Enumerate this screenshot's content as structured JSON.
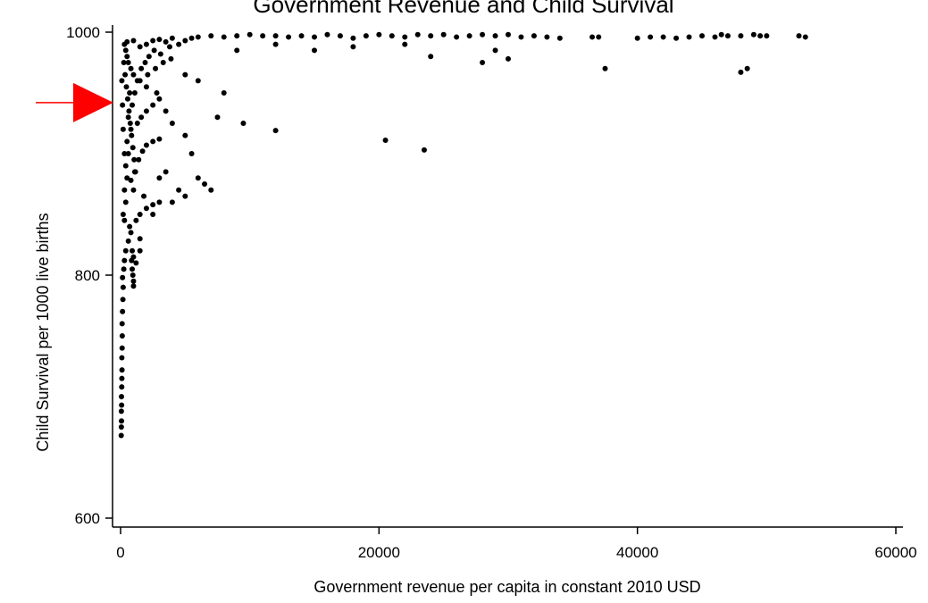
{
  "chart_data": {
    "type": "scatter",
    "title": "Government Revenue and Child Survival",
    "xlabel": "Government revenue per capita in constant 2010 USD",
    "ylabel": "Child Survival per 1000 live births",
    "xlim": [
      0,
      60000
    ],
    "ylim": [
      600,
      1000
    ],
    "xticks": [
      0,
      20000,
      40000,
      60000
    ],
    "xtick_labels": [
      "0",
      "20000",
      "40000",
      "60000"
    ],
    "yticks": [
      600,
      800,
      1000
    ],
    "ytick_labels": [
      "600",
      "800",
      "1000"
    ],
    "grid": false,
    "marker_color": "#000000",
    "annotation": {
      "shape": "arrow",
      "color": "#ff0000",
      "points_to_y": 942
    },
    "series": [
      {
        "points": [
          [
            50,
            668
          ],
          [
            60,
            675
          ],
          [
            70,
            680
          ],
          [
            60,
            688
          ],
          [
            80,
            693
          ],
          [
            70,
            700
          ],
          [
            90,
            708
          ],
          [
            100,
            715
          ],
          [
            110,
            722
          ],
          [
            100,
            732
          ],
          [
            120,
            740
          ],
          [
            130,
            750
          ],
          [
            120,
            760
          ],
          [
            150,
            770
          ],
          [
            180,
            780
          ],
          [
            200,
            790
          ],
          [
            150,
            798
          ],
          [
            250,
            805
          ],
          [
            300,
            812
          ],
          [
            400,
            820
          ],
          [
            600,
            828
          ],
          [
            800,
            835
          ],
          [
            1000,
            791
          ],
          [
            1000,
            795
          ],
          [
            950,
            800
          ],
          [
            900,
            805
          ],
          [
            850,
            812
          ],
          [
            900,
            820
          ],
          [
            700,
            840
          ],
          [
            1200,
            845
          ],
          [
            1500,
            850
          ],
          [
            2000,
            855
          ],
          [
            2500,
            858
          ],
          [
            3000,
            860
          ],
          [
            1800,
            865
          ],
          [
            1000,
            870
          ],
          [
            800,
            878
          ],
          [
            1100,
            885
          ],
          [
            1400,
            895
          ],
          [
            1700,
            902
          ],
          [
            2000,
            907
          ],
          [
            2500,
            910
          ],
          [
            3000,
            912
          ],
          [
            1300,
            925
          ],
          [
            1600,
            930
          ],
          [
            2000,
            935
          ],
          [
            2500,
            940
          ],
          [
            3000,
            945
          ],
          [
            2800,
            950
          ],
          [
            2000,
            955
          ],
          [
            1500,
            960
          ],
          [
            1000,
            965
          ],
          [
            800,
            970
          ],
          [
            600,
            975
          ],
          [
            500,
            980
          ],
          [
            400,
            985
          ],
          [
            300,
            990
          ],
          [
            500,
            992
          ],
          [
            1000,
            993
          ],
          [
            1500,
            988
          ],
          [
            2000,
            990
          ],
          [
            2500,
            993
          ],
          [
            3000,
            994
          ],
          [
            3500,
            992
          ],
          [
            4000,
            995
          ],
          [
            5000,
            993
          ],
          [
            5500,
            995
          ],
          [
            6000,
            996
          ],
          [
            7000,
            997
          ],
          [
            8000,
            996
          ],
          [
            9000,
            997
          ],
          [
            10000,
            998
          ],
          [
            11000,
            997
          ],
          [
            12000,
            997
          ],
          [
            13000,
            996
          ],
          [
            14000,
            997
          ],
          [
            15000,
            996
          ],
          [
            16000,
            998
          ],
          [
            17000,
            997
          ],
          [
            18000,
            995
          ],
          [
            19000,
            997
          ],
          [
            20000,
            998
          ],
          [
            21000,
            997
          ],
          [
            22000,
            996
          ],
          [
            23000,
            998
          ],
          [
            24000,
            997
          ],
          [
            25000,
            998
          ],
          [
            26000,
            996
          ],
          [
            27000,
            997
          ],
          [
            28000,
            998
          ],
          [
            29000,
            997
          ],
          [
            30000,
            998
          ],
          [
            31000,
            996
          ],
          [
            32000,
            997
          ],
          [
            33000,
            996
          ],
          [
            34000,
            995
          ],
          [
            36500,
            996
          ],
          [
            37000,
            996
          ],
          [
            40000,
            995
          ],
          [
            41000,
            996
          ],
          [
            42000,
            996
          ],
          [
            43000,
            995
          ],
          [
            44000,
            996
          ],
          [
            45000,
            997
          ],
          [
            46000,
            996
          ],
          [
            46500,
            998
          ],
          [
            47000,
            997
          ],
          [
            48000,
            997
          ],
          [
            49000,
            998
          ],
          [
            50000,
            997
          ],
          [
            52500,
            997
          ],
          [
            53000,
            996
          ],
          [
            3500,
            935
          ],
          [
            4000,
            925
          ],
          [
            5000,
            915
          ],
          [
            5500,
            900
          ],
          [
            6000,
            880
          ],
          [
            6500,
            875
          ],
          [
            7000,
            870
          ],
          [
            7500,
            930
          ],
          [
            9500,
            925
          ],
          [
            12000,
            919
          ],
          [
            20500,
            911
          ],
          [
            23500,
            903
          ],
          [
            3000,
            880
          ],
          [
            3500,
            885
          ],
          [
            4500,
            870
          ],
          [
            5000,
            865
          ],
          [
            4000,
            860
          ],
          [
            2500,
            850
          ],
          [
            1500,
            820
          ],
          [
            1000,
            815
          ],
          [
            1200,
            810
          ],
          [
            1500,
            830
          ],
          [
            8000,
            950
          ],
          [
            6000,
            960
          ],
          [
            5000,
            965
          ],
          [
            9000,
            985
          ],
          [
            12000,
            990
          ],
          [
            15000,
            985
          ],
          [
            18000,
            988
          ],
          [
            22000,
            990
          ],
          [
            24000,
            980
          ],
          [
            28000,
            975
          ],
          [
            30000,
            978
          ],
          [
            29000,
            985
          ],
          [
            37500,
            970
          ],
          [
            48000,
            967
          ],
          [
            48500,
            970
          ],
          [
            49500,
            997
          ],
          [
            200,
            850
          ],
          [
            300,
            870
          ],
          [
            400,
            890
          ],
          [
            500,
            910
          ],
          [
            600,
            930
          ],
          [
            700,
            950
          ],
          [
            300,
            900
          ],
          [
            200,
            920
          ],
          [
            150,
            940
          ],
          [
            100,
            960
          ],
          [
            250,
            975
          ],
          [
            350,
            965
          ],
          [
            450,
            955
          ],
          [
            550,
            945
          ],
          [
            650,
            935
          ],
          [
            750,
            925
          ],
          [
            850,
            915
          ],
          [
            950,
            905
          ],
          [
            1050,
            895
          ],
          [
            1150,
            885
          ],
          [
            400,
            860
          ],
          [
            300,
            845
          ],
          [
            500,
            880
          ],
          [
            600,
            900
          ],
          [
            800,
            920
          ],
          [
            900,
            940
          ],
          [
            1100,
            950
          ],
          [
            1300,
            960
          ],
          [
            1600,
            970
          ],
          [
            1900,
            975
          ],
          [
            2200,
            980
          ],
          [
            2600,
            985
          ],
          [
            3100,
            982
          ],
          [
            3800,
            988
          ],
          [
            4500,
            990
          ],
          [
            2100,
            965
          ],
          [
            2700,
            970
          ],
          [
            3300,
            975
          ],
          [
            3900,
            978
          ]
        ]
      }
    ]
  }
}
